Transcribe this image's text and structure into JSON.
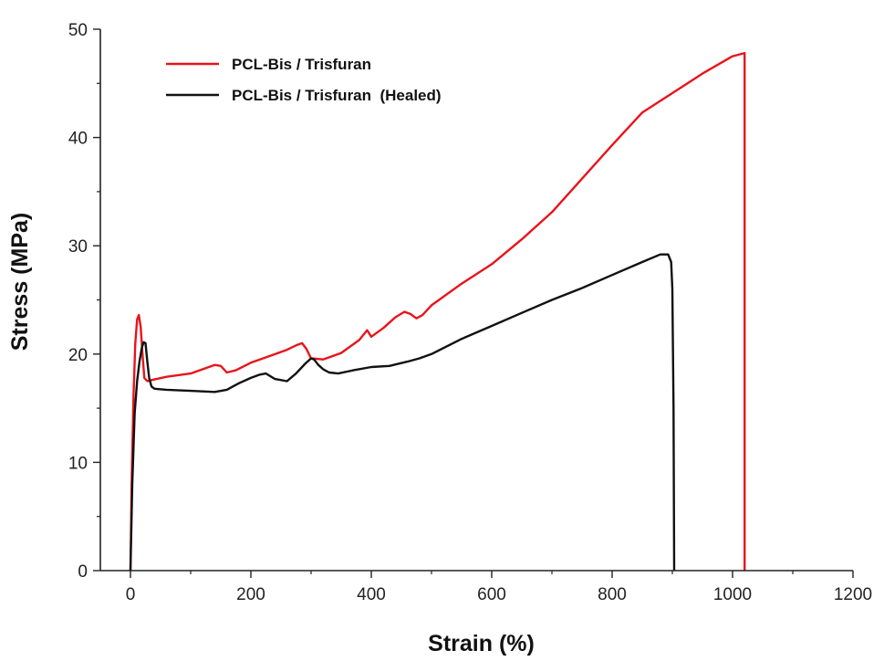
{
  "chart_data": {
    "type": "line",
    "title": "",
    "xlabel": "Strain (%)",
    "ylabel": "Stress (MPa)",
    "xlim": [
      -50,
      1200
    ],
    "ylim": [
      0,
      50
    ],
    "xticks": [
      0,
      200,
      400,
      600,
      800,
      1000,
      1200
    ],
    "yticks": [
      0,
      10,
      20,
      30,
      40,
      50
    ],
    "xtick_labels": [
      "0",
      "200",
      "400",
      "600",
      "800",
      "1000",
      "1200"
    ],
    "ytick_labels": [
      "0",
      "10",
      "20",
      "30",
      "40",
      "50"
    ],
    "grid": false,
    "legend_position": "top-left",
    "series": [
      {
        "name": "PCL-Bis / Trisfuran",
        "color": "#e8141b",
        "x": [
          0,
          2,
          5,
          8,
          11,
          14,
          17,
          20,
          23,
          28,
          35,
          60,
          100,
          125,
          140,
          150,
          160,
          175,
          200,
          230,
          260,
          275,
          285,
          292,
          300,
          320,
          350,
          380,
          393,
          400,
          420,
          440,
          455,
          465,
          475,
          485,
          500,
          550,
          600,
          650,
          700,
          750,
          800,
          850,
          900,
          950,
          1000,
          1020,
          1020,
          1020
        ],
        "y": [
          0,
          8,
          16,
          21,
          23.2,
          23.6,
          22.5,
          20,
          17.8,
          17.5,
          17.6,
          17.9,
          18.2,
          18.7,
          19,
          18.9,
          18.3,
          18.5,
          19.2,
          19.8,
          20.4,
          20.8,
          21,
          20.5,
          19.6,
          19.5,
          20.1,
          21.3,
          22.2,
          21.6,
          22.4,
          23.4,
          23.9,
          23.7,
          23.3,
          23.6,
          24.5,
          26.5,
          28.3,
          30.6,
          33.1,
          36.2,
          39.3,
          42.3,
          44.1,
          45.9,
          47.5,
          47.8,
          25,
          0
        ]
      },
      {
        "name": "PCL-Bis / Trisfuran  (Healed)",
        "color": "#111111",
        "x": [
          0,
          3,
          7,
          11,
          15,
          19,
          22,
          25,
          28,
          31,
          35,
          40,
          60,
          100,
          140,
          160,
          180,
          200,
          215,
          225,
          240,
          260,
          275,
          290,
          300,
          305,
          312,
          320,
          330,
          345,
          370,
          400,
          430,
          460,
          480,
          500,
          550,
          600,
          650,
          700,
          750,
          800,
          850,
          880,
          893,
          898,
          900,
          902,
          903
        ],
        "y": [
          0,
          8,
          14.5,
          17.5,
          19.3,
          20.6,
          21.1,
          21,
          19.3,
          17.8,
          17,
          16.8,
          16.7,
          16.6,
          16.5,
          16.7,
          17.3,
          17.8,
          18.1,
          18.2,
          17.7,
          17.5,
          18.2,
          19.1,
          19.6,
          19.5,
          19.0,
          18.6,
          18.3,
          18.2,
          18.5,
          18.8,
          18.9,
          19.3,
          19.6,
          20,
          21.4,
          22.6,
          23.8,
          25,
          26.1,
          27.3,
          28.5,
          29.2,
          29.2,
          28.5,
          26,
          15,
          0
        ]
      }
    ]
  }
}
